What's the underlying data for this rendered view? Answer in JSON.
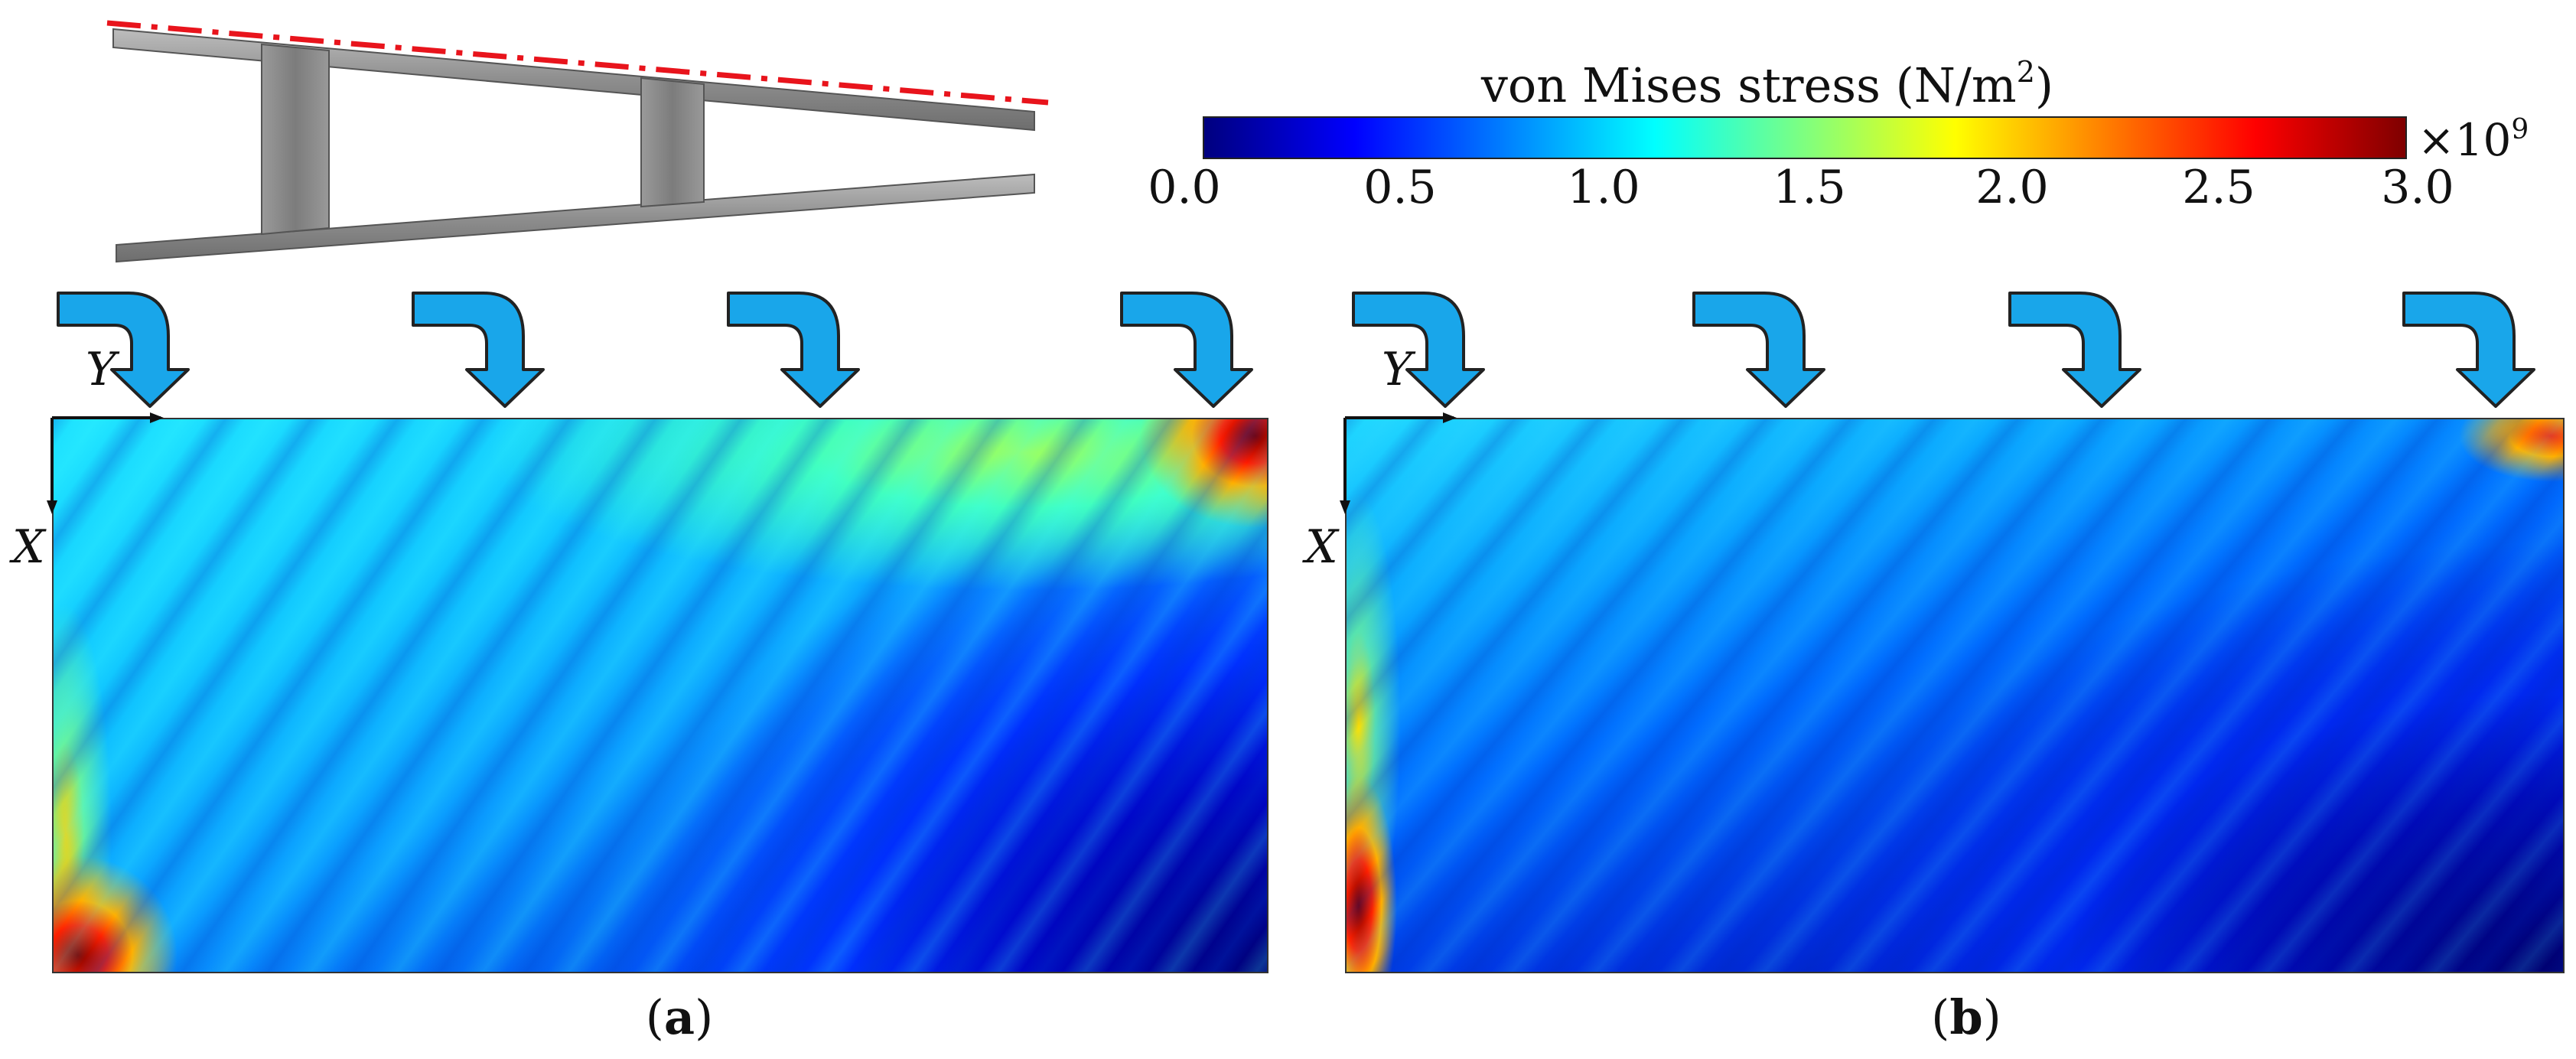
{
  "colorbar": {
    "title_main": "von Mises stress (N/m",
    "title_sup": "2",
    "title_end": ")",
    "multiplier_base": "×10",
    "multiplier_exp": "9",
    "ticks": [
      "0.0",
      "0.5",
      "1.0",
      "1.5",
      "2.0",
      "2.5",
      "3.0"
    ],
    "colormap": [
      "#00007f",
      "#0000ff",
      "#007fff",
      "#00ffff",
      "#7fff7f",
      "#ffff00",
      "#ff7f00",
      "#ff0000",
      "#7f0000"
    ]
  },
  "panels": [
    {
      "label_open": "(",
      "label_letter": "a",
      "label_close": ")",
      "axis_x": "X",
      "axis_y": "Y"
    },
    {
      "label_open": "(",
      "label_letter": "b",
      "label_close": ")",
      "axis_x": "X",
      "axis_y": "Y"
    }
  ],
  "colors": {
    "load_arrow": "#19a6ea",
    "dash_line": "#e8141c",
    "beam": "#8c8c8c"
  }
}
